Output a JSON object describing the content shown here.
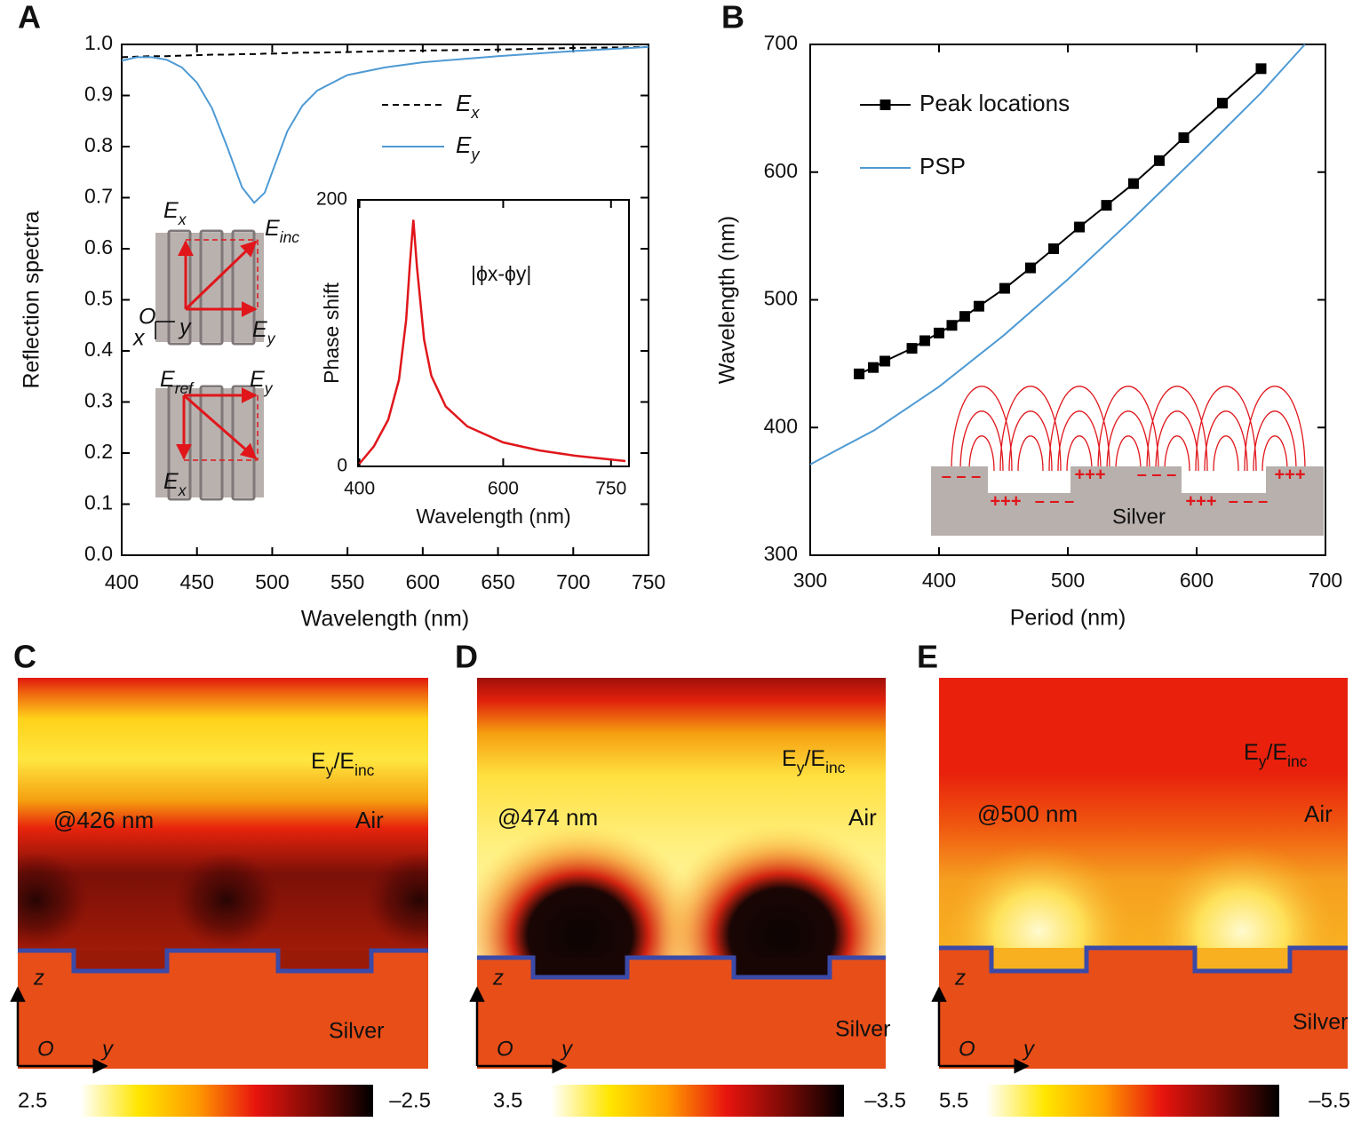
{
  "chart_data": [
    {
      "type": "line",
      "panel": "A",
      "xlabel": "Wavelength (nm)",
      "ylabel": "Reflection spectra",
      "x": [
        400,
        410,
        420,
        430,
        440,
        450,
        460,
        470,
        480,
        488,
        495,
        500,
        510,
        520,
        530,
        550,
        575,
        600,
        650,
        700,
        750
      ],
      "series": [
        {
          "name": "Ex",
          "color": "#000000",
          "dash": true,
          "values": [
            0.975,
            0.976,
            0.977,
            0.977,
            0.978,
            0.979,
            0.98,
            0.98,
            0.981,
            0.981,
            0.982,
            0.982,
            0.983,
            0.984,
            0.984,
            0.985,
            0.987,
            0.988,
            0.99,
            0.993,
            0.995
          ]
        },
        {
          "name": "Ey",
          "color": "#4e9ad4",
          "values": [
            0.968,
            0.975,
            0.975,
            0.97,
            0.955,
            0.925,
            0.875,
            0.8,
            0.72,
            0.69,
            0.71,
            0.75,
            0.83,
            0.88,
            0.91,
            0.94,
            0.955,
            0.965,
            0.977,
            0.987,
            0.995
          ]
        }
      ],
      "xlim": [
        400,
        750
      ],
      "ylim": [
        0,
        1
      ],
      "xticks": [
        400,
        450,
        500,
        550,
        600,
        650,
        700,
        750
      ],
      "yticks": [
        {
          "value": 0,
          "label": "0.0"
        },
        0.1,
        0.2,
        0.3,
        0.4,
        0.5,
        0.6,
        0.7,
        0.8,
        0.9,
        {
          "value": 1,
          "label": "1.0"
        }
      ],
      "annotations": [
        "Ex",
        "Einc",
        "O",
        "y",
        "x",
        "Ey",
        "Eref",
        "Ey",
        "Ex"
      ]
    },
    {
      "type": "line",
      "xlabel": "Wavelength (nm)",
      "ylabel": "Phase shift",
      "annotation": "|ϕx-ϕy|",
      "x": [
        400,
        420,
        440,
        455,
        465,
        470,
        475,
        480,
        490,
        500,
        520,
        550,
        600,
        650,
        700,
        770
      ],
      "series": [
        {
          "color": "#e0161b",
          "values": [
            2,
            15,
            35,
            65,
            110,
            150,
            185,
            150,
            95,
            68,
            45,
            30,
            18,
            12,
            8,
            4
          ]
        }
      ],
      "xlim": [
        398,
        775
      ],
      "ylim": [
        0,
        200
      ],
      "xticks": [
        400,
        600,
        750
      ],
      "yticks": [
        0,
        200
      ]
    },
    {
      "type": "line",
      "panel": "B",
      "xlabel": "Period (nm)",
      "ylabel": "Wavelength (nm)",
      "series": [
        {
          "name": "Peak locations",
          "color": "#000000",
          "marker": "square",
          "x": [
            338,
            349,
            358,
            379,
            389,
            400,
            410,
            420,
            431,
            451,
            471,
            489,
            509,
            530,
            551,
            571,
            590,
            620,
            650
          ],
          "values": [
            442,
            447,
            452,
            462,
            468,
            474,
            480,
            487,
            495,
            509,
            525,
            540,
            557,
            574,
            591,
            609,
            627,
            654,
            681
          ]
        },
        {
          "name": "PSP",
          "color": "#4e9ad4",
          "x": [
            300,
            320,
            350,
            400,
            450,
            500,
            550,
            600,
            650,
            684
          ],
          "values": [
            371,
            382,
            398,
            432,
            472,
            516,
            563,
            612,
            662,
            700
          ]
        }
      ],
      "xlim": [
        300,
        700
      ],
      "ylim": [
        300,
        700
      ],
      "xticks": [
        300,
        400,
        500,
        600,
        700
      ],
      "yticks": [
        300,
        400,
        500,
        600,
        700
      ],
      "inset": {
        "charges": [
          "– – –",
          "+++",
          "– – –",
          "+++",
          "– – –",
          "+++",
          "– – –",
          "+++"
        ],
        "material": "Silver"
      }
    },
    {
      "type": "field-map",
      "panel": "C",
      "label": "Ey/Einc",
      "wavelength": "@426 nm",
      "regions": [
        "Air",
        "Silver"
      ],
      "axis_labels": [
        "z",
        "O",
        "y"
      ],
      "colormap": [
        "#ffffff",
        "#ffe600",
        "#ff9a00",
        "#e8140e",
        "#7a0a06",
        "#000000"
      ],
      "colorbar_ticks": [
        2.5,
        {
          "value": -2.5,
          "label": "–2.5"
        }
      ]
    },
    {
      "type": "field-map",
      "panel": "D",
      "label": "Ey/Einc",
      "wavelength": "@474 nm",
      "regions": [
        "Air",
        "Silver"
      ],
      "axis_labels": [
        "z",
        "O",
        "y"
      ],
      "colormap": [
        "#ffffff",
        "#ffe600",
        "#ff9a00",
        "#e8140e",
        "#7a0a06",
        "#000000"
      ],
      "colorbar_ticks": [
        3.5,
        {
          "value": -3.5,
          "label": "–3.5"
        }
      ]
    },
    {
      "type": "field-map",
      "panel": "E",
      "label": "Ey/Einc",
      "wavelength": "@500 nm",
      "regions": [
        "Air",
        "Silver"
      ],
      "axis_labels": [
        "z",
        "O",
        "y"
      ],
      "colormap": [
        "#ffffff",
        "#ffe600",
        "#ff9a00",
        "#e8140e",
        "#7a0a06",
        "#000000"
      ],
      "colorbar_ticks": [
        5.5,
        {
          "value": -5.5,
          "label": "–5.5"
        }
      ]
    }
  ]
}
